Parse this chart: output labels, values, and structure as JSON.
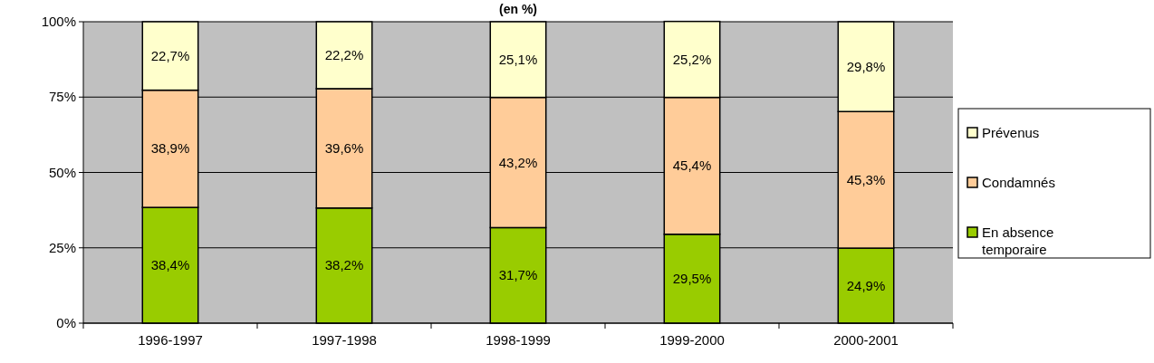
{
  "chart_data": {
    "type": "bar",
    "title": "(en %)",
    "stacked": true,
    "categories": [
      "1996-1997",
      "1997-1998",
      "1998-1999",
      "1999-2000",
      "2000-2001"
    ],
    "series": [
      {
        "name": "En absence temporaire",
        "color": "#99cc00",
        "values": [
          38.4,
          38.2,
          31.7,
          29.5,
          24.9
        ],
        "value_labels": [
          "38,4%",
          "38,2%",
          "31,7%",
          "29,5%",
          "24,9%"
        ]
      },
      {
        "name": "Condamnés",
        "color": "#ffcc99",
        "values": [
          38.9,
          39.6,
          43.2,
          45.4,
          45.3
        ],
        "value_labels": [
          "38,9%",
          "39,6%",
          "43,2%",
          "45,4%",
          "45,3%"
        ]
      },
      {
        "name": "Prévenus",
        "color": "#ffffcc",
        "values": [
          22.7,
          22.2,
          25.1,
          25.2,
          29.8
        ],
        "value_labels": [
          "22,7%",
          "22,2%",
          "25,1%",
          "25,2%",
          "29,8%"
        ]
      }
    ],
    "ylim": [
      0,
      100
    ],
    "yticks": [
      {
        "value": 0,
        "label": "0%"
      },
      {
        "value": 25,
        "label": "25%"
      },
      {
        "value": 50,
        "label": "50%"
      },
      {
        "value": 75,
        "label": "75%"
      },
      {
        "value": 100,
        "label": "100%"
      }
    ],
    "grid": "y",
    "legend": "right"
  }
}
